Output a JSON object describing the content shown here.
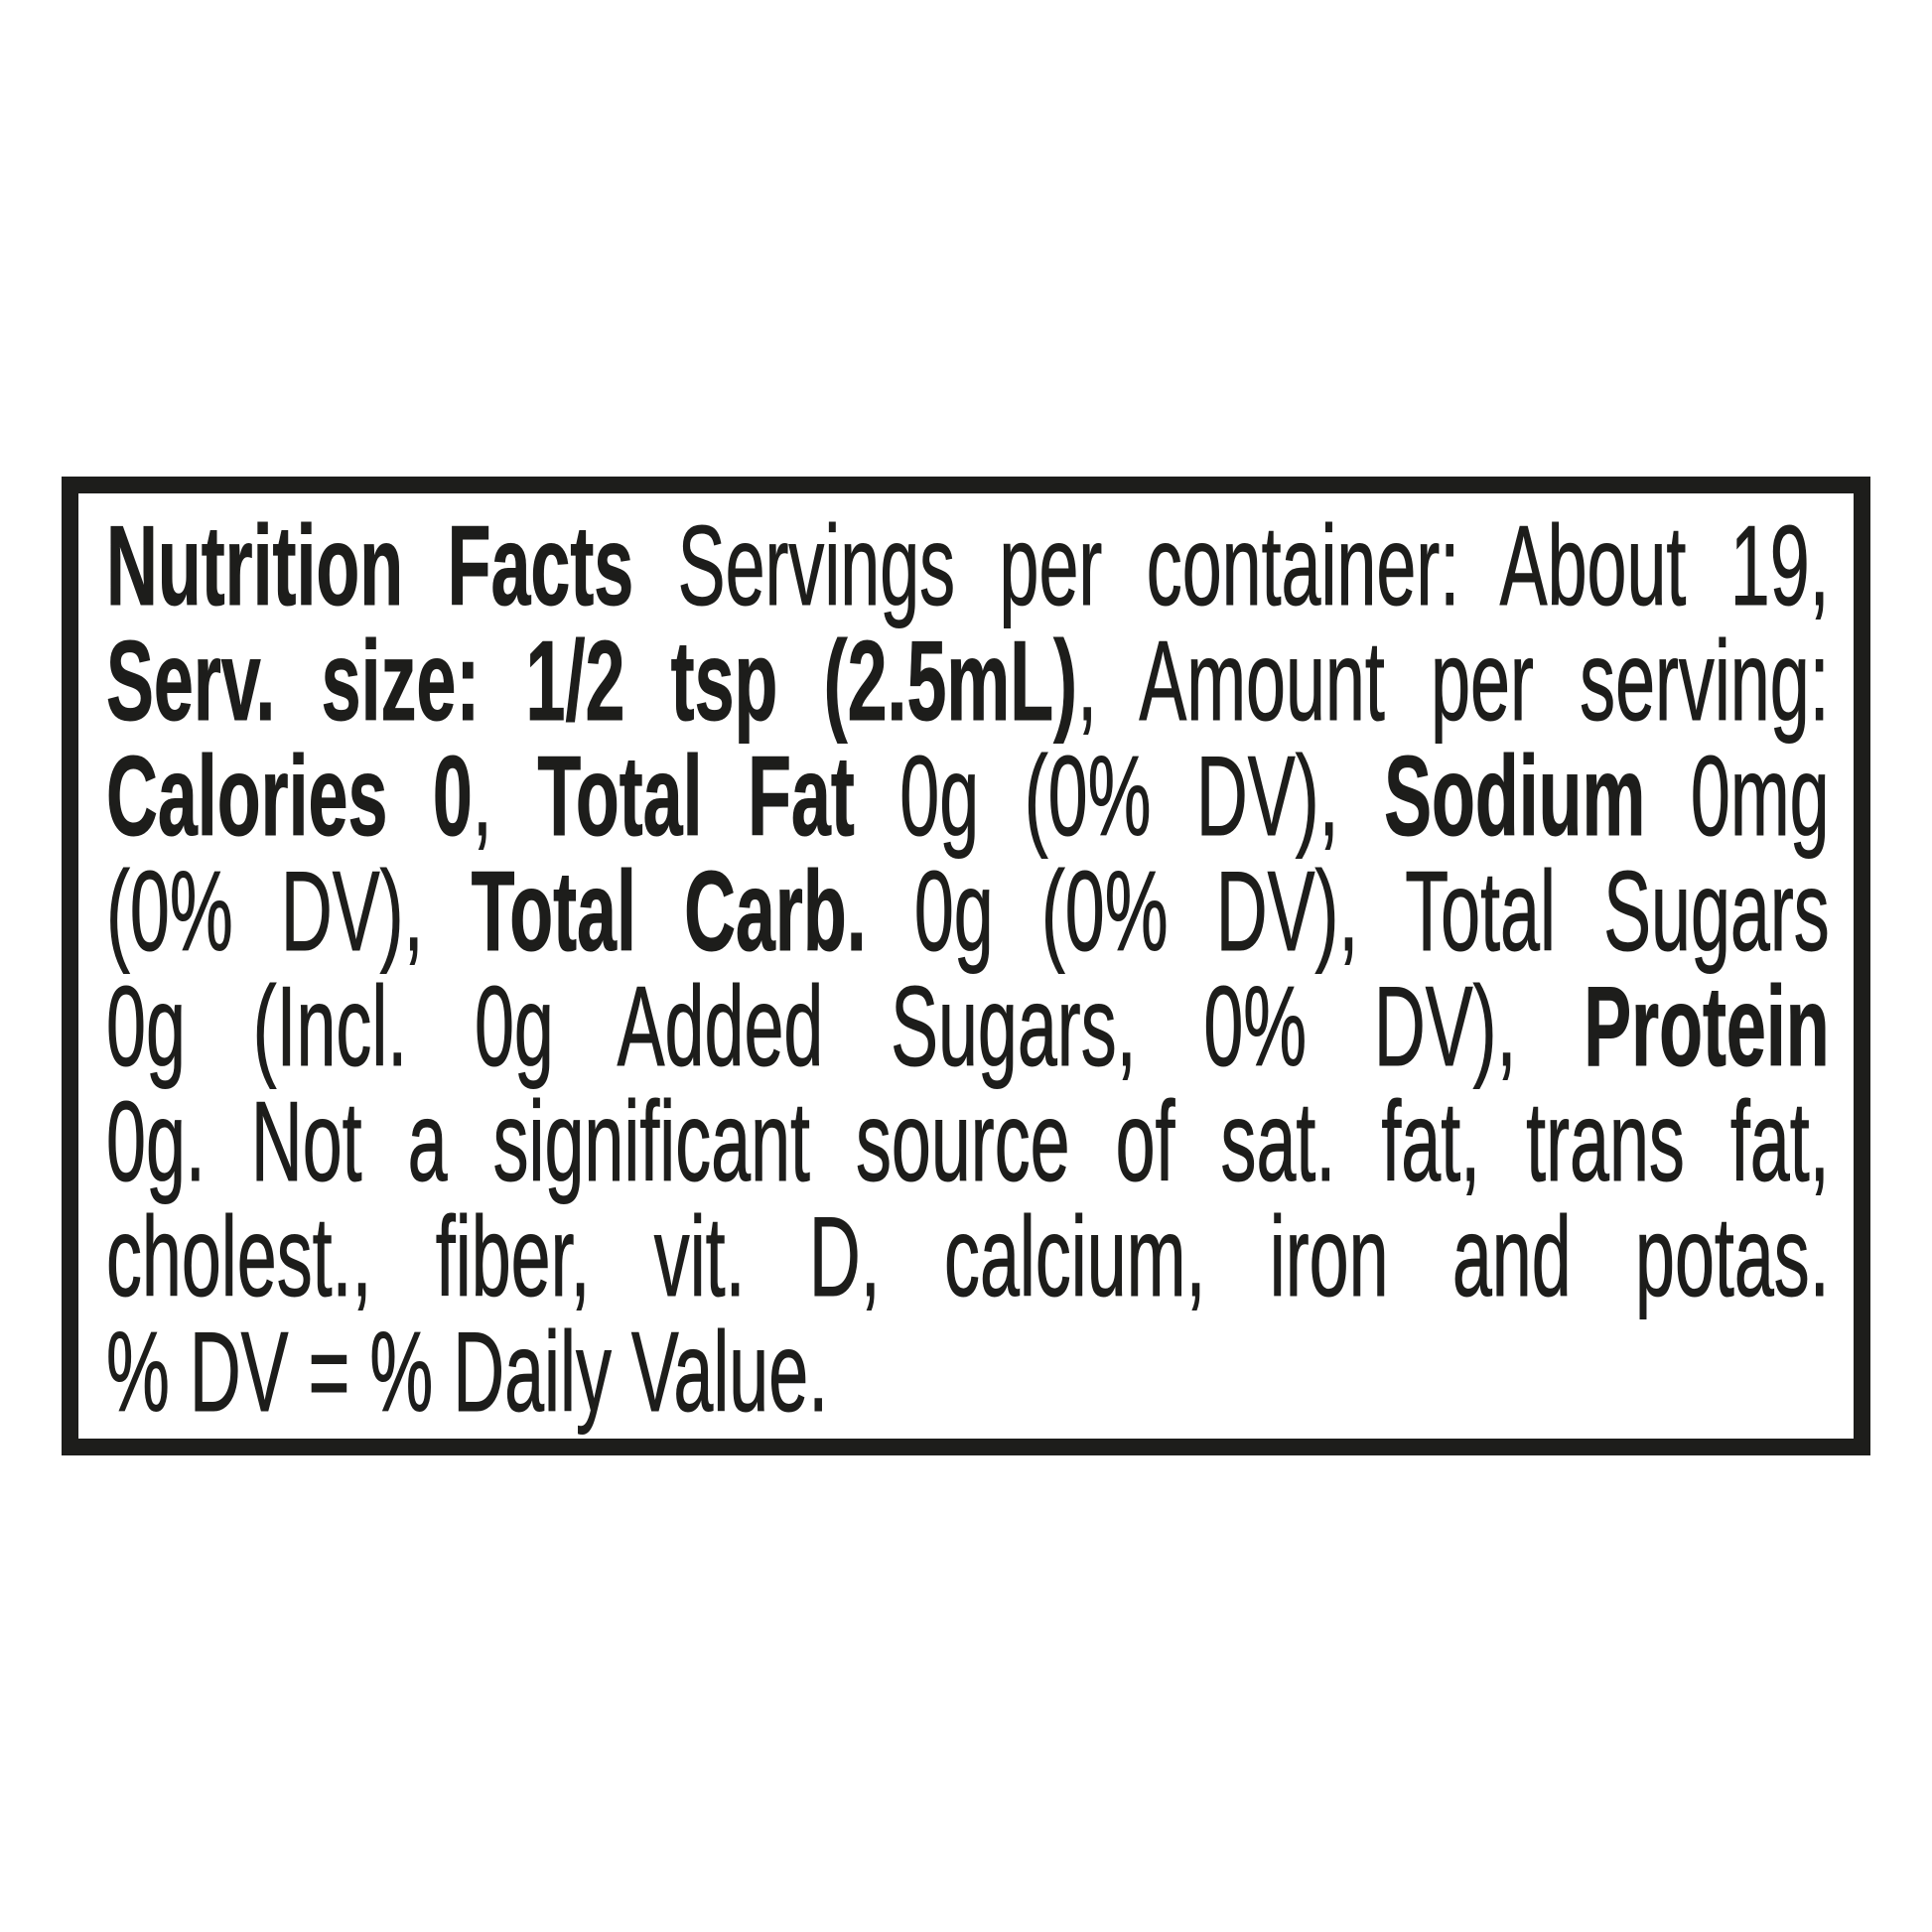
{
  "label": {
    "type": "nutrition-facts-linear",
    "colors": {
      "text": "#1d1d1b",
      "border": "#1d1d1b",
      "background": "#ffffff"
    },
    "servings_per_container": "About 19",
    "serving_size": "1/2 tsp (2.5mL)",
    "nutrients": {
      "calories": "0",
      "total_fat": "0g (0% DV)",
      "sodium": "0mg (0% DV)",
      "total_carb": "0g (0% DV)",
      "total_sugars": "0g",
      "added_sugars": "Incl. 0g Added Sugars, 0% DV",
      "protein": "0g"
    },
    "lines": [
      {
        "segments": [
          {
            "text": "Nutrition Facts",
            "bold": true
          },
          {
            "text": " Servings per container: About 19,",
            "bold": false
          }
        ]
      },
      {
        "segments": [
          {
            "text": "Serv. size: 1/2 tsp (2.5mL)",
            "bold": true
          },
          {
            "text": ", Amount per serving:",
            "bold": false
          }
        ]
      },
      {
        "segments": [
          {
            "text": "Calories 0",
            "bold": true
          },
          {
            "text": ", ",
            "bold": false
          },
          {
            "text": "Total Fat",
            "bold": true
          },
          {
            "text": " 0g (0% DV), ",
            "bold": false
          },
          {
            "text": "Sodium",
            "bold": true
          },
          {
            "text": " 0mg",
            "bold": false
          }
        ]
      },
      {
        "segments": [
          {
            "text": "(0% DV), ",
            "bold": false
          },
          {
            "text": "Total Carb.",
            "bold": true
          },
          {
            "text": " 0g (0% DV), Total Sugars",
            "bold": false
          }
        ]
      },
      {
        "segments": [
          {
            "text": "0g (Incl. 0g Added Sugars, 0% DV), ",
            "bold": false
          },
          {
            "text": "Protein",
            "bold": true
          }
        ]
      },
      {
        "segments": [
          {
            "text": "0g. Not a significant source of sat. fat, trans fat,",
            "bold": false
          }
        ]
      },
      {
        "segments": [
          {
            "text": "cholest., fiber, vit. D, calcium, iron and potas.",
            "bold": false
          }
        ]
      },
      {
        "segments": [
          {
            "text": "% DV = % Daily Value.",
            "bold": false
          }
        ]
      }
    ]
  }
}
